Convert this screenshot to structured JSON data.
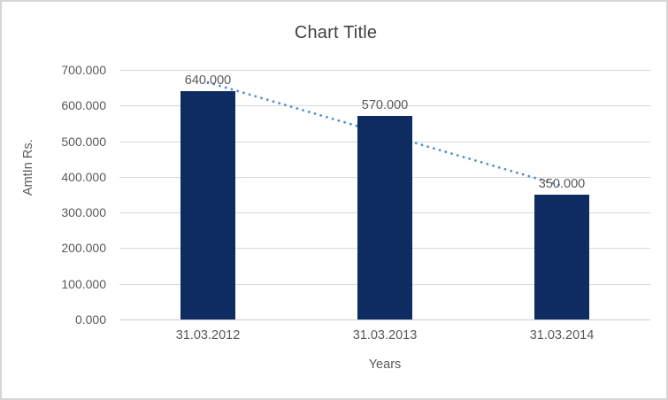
{
  "chart_data": {
    "type": "bar",
    "title": "Chart Title",
    "xlabel": "Years",
    "ylabel": "AmtIn Rs.",
    "categories": [
      "31.03.2012",
      "31.03.2013",
      "31.03.2014"
    ],
    "values": [
      640,
      570,
      350
    ],
    "data_labels": [
      "640.000",
      "570.000",
      "350.000"
    ],
    "y_ticks": [
      "700.000",
      "600.000",
      "500.000",
      "400.000",
      "300.000",
      "200.000",
      "100.000",
      "0.000"
    ],
    "ylim": [
      0,
      700
    ],
    "grid": true,
    "legend": "none",
    "trendline": {
      "type": "linear",
      "style": "dotted",
      "start_value": 665,
      "end_value": 375
    },
    "colors": {
      "bar": "#0e2c62",
      "trendline": "#5290d0",
      "gridline": "#d9d9d9",
      "axis_line": "#cfcfcf",
      "tick_text": "#595959",
      "title_text": "#404040",
      "border": "#d6d6d6",
      "background": "#ffffff"
    }
  }
}
